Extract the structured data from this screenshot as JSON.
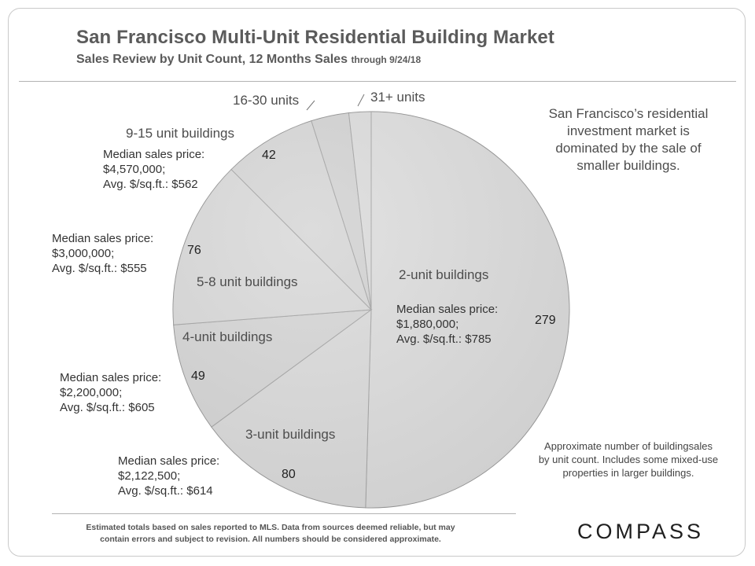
{
  "header": {
    "title": "San Francisco Multi-Unit Residential Building Market",
    "subtitle_main": "Sales Review by Unit Count, 12 Months Sales",
    "subtitle_through": "through 9/24/18"
  },
  "note": {
    "lines": [
      "San Francisco’s residential",
      "investment market is",
      "dominated by the sale of",
      "smaller buildings."
    ]
  },
  "approx_note": {
    "lines": [
      "Approximate number of  buildingsales",
      "by unit count. Includes some mixed-use",
      "properties in larger buildings."
    ]
  },
  "footnote": {
    "lines": [
      "Estimated totals based on sales reported to MLS. Data from sources deemed reliable, but may",
      "contain errors and subject to revision. All numbers should be considered  approximate."
    ]
  },
  "logo": "COMPASS",
  "colors": {
    "slice_fill": "#d2d2d2",
    "slice_stroke": "#8c8c8c",
    "text": "#444444"
  },
  "chart_data": {
    "type": "pie",
    "title": "San Francisco Multi-Unit Residential Building Market",
    "subtitle": "Sales Review by Unit Count, 12 Months Sales through 9/24/18",
    "slices": [
      {
        "label": "2-unit buildings",
        "value": 279,
        "median_price": "$1,880,000;",
        "avg_psf": "$785"
      },
      {
        "label": "3-unit buildings",
        "value": 80,
        "median_price": "$2,122,500;",
        "avg_psf": "$614"
      },
      {
        "label": "4-unit buildings",
        "value": 49,
        "median_price": "$2,200,000;",
        "avg_psf": "$605"
      },
      {
        "label": "5-8 unit buildings",
        "value": 76,
        "median_price": "$3,000,000;",
        "avg_psf": "$555"
      },
      {
        "label": "9-15 unit buildings",
        "value": 42,
        "median_price": "$4,570,000;",
        "avg_psf": "$562"
      },
      {
        "label": "16-30 units",
        "value": 17
      },
      {
        "label": "31+ units",
        "value": 10
      }
    ],
    "text": {
      "median_prefix": "Median sales price:",
      "avg_prefix": "Avg. $/sq.ft.: "
    }
  }
}
